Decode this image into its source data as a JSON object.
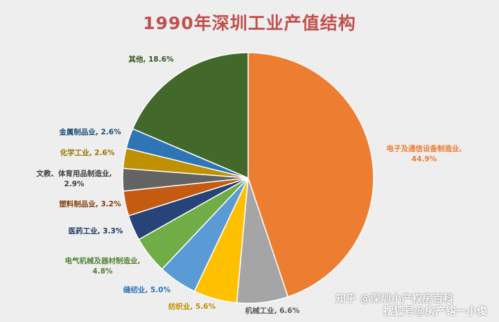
{
  "chart_data": {
    "type": "pie",
    "title": "1990年深圳工业产值结构",
    "slices": [
      {
        "label": "电子及通信设备制造业,",
        "value_label": "44.9%",
        "value": 44.9,
        "color": "#ed7d31",
        "label_color": "#ed7d31"
      },
      {
        "label": "机械工业,",
        "value_label": "6.6%",
        "value": 6.6,
        "color": "#a5a5a5",
        "label_color": "#595959"
      },
      {
        "label": "纺织业,",
        "value_label": "5.6%",
        "value": 5.6,
        "color": "#ffc000",
        "label_color": "#bf9000"
      },
      {
        "label": "缝纫业,",
        "value_label": "5.0%",
        "value": 5.0,
        "color": "#5b9bd5",
        "label_color": "#2e75b6"
      },
      {
        "label": "电气机械及器材制造业,",
        "value_label": "4.8%",
        "value": 4.8,
        "color": "#70ad47",
        "label_color": "#548235"
      },
      {
        "label": "医药工业,",
        "value_label": "3.3%",
        "value": 3.3,
        "color": "#264478",
        "label_color": "#203864"
      },
      {
        "label": "塑料制品业,",
        "value_label": "3.2%",
        "value": 3.2,
        "color": "#c55a11",
        "label_color": "#843c0c"
      },
      {
        "label": "文教、体育用品制造业,",
        "value_label": "2.9%",
        "value": 2.9,
        "color": "#636363",
        "label_color": "#404040"
      },
      {
        "label": "化学工业,",
        "value_label": "2.6%",
        "value": 2.6,
        "color": "#bf9000",
        "label_color": "#997300"
      },
      {
        "label": "金属制品业,",
        "value_label": "2.6%",
        "value": 2.6,
        "color": "#2e75b6",
        "label_color": "#1f4e79"
      },
      {
        "label": "其他,",
        "value_label": "18.6%",
        "value": 18.6,
        "color": "#43682b",
        "label_color": "#375623"
      }
    ]
  },
  "watermarks": {
    "zhihu": "知乎 @深圳小产权房百科",
    "sohu": "搜狐号@房产钩一小俊"
  }
}
